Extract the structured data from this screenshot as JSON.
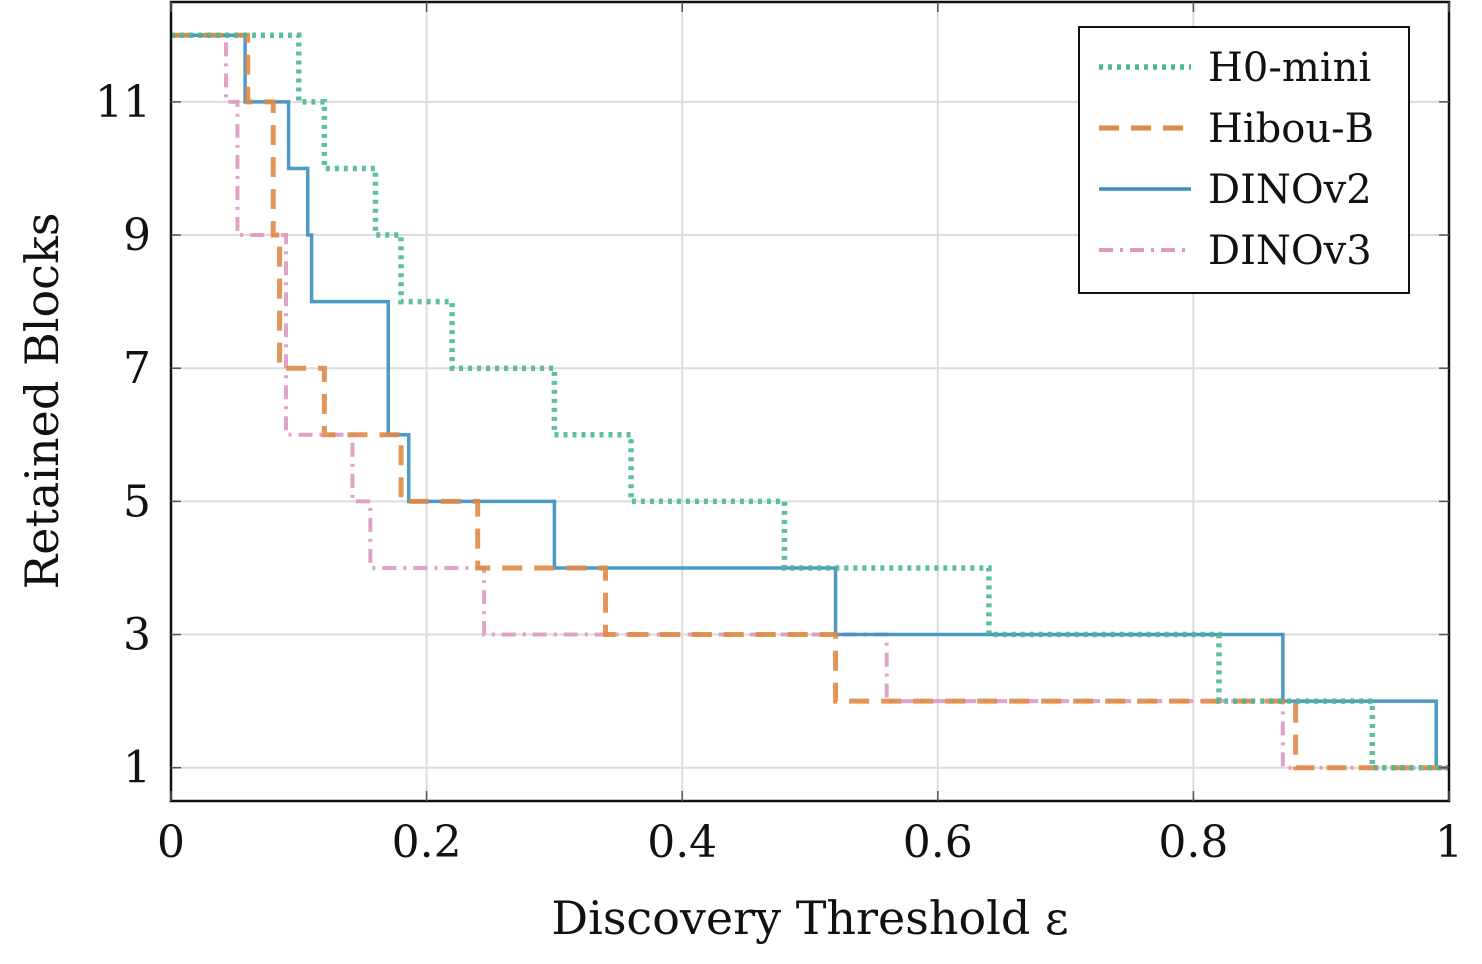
{
  "chart_data": {
    "type": "line",
    "step": true,
    "xlabel": "Discovery Threshold ε",
    "ylabel": "Retained Blocks",
    "xlim": [
      0,
      1
    ],
    "ylim": [
      0.5,
      12.5
    ],
    "xticks": [
      0,
      0.2,
      0.4,
      0.6,
      0.8,
      1
    ],
    "xtick_labels": [
      "0",
      "0.2",
      "0.4",
      "0.6",
      "0.8",
      "1"
    ],
    "yticks": [
      1,
      3,
      5,
      7,
      9,
      11
    ],
    "ytick_labels": [
      "1",
      "3",
      "5",
      "7",
      "9",
      "11"
    ],
    "grid": true,
    "legend_position": "top-right",
    "series": [
      {
        "name": "H0-mini",
        "color": "#4db892",
        "style": "dotted",
        "x": [
          0,
          0.1,
          0.12,
          0.16,
          0.18,
          0.22,
          0.3,
          0.36,
          0.48,
          0.64,
          0.82,
          0.94,
          1
        ],
        "y": [
          12,
          11,
          10,
          9,
          8,
          7,
          6,
          5,
          4,
          3,
          2,
          1,
          1
        ]
      },
      {
        "name": "Hibou-B",
        "color": "#e08a45",
        "style": "dashed",
        "x": [
          0,
          0.06,
          0.08,
          0.085,
          0.12,
          0.18,
          0.24,
          0.34,
          0.52,
          0.88,
          1
        ],
        "y": [
          12,
          11,
          9,
          7,
          6,
          5,
          4,
          3,
          2,
          1,
          1
        ]
      },
      {
        "name": "DINOv2",
        "color": "#3a8fc0",
        "style": "solid",
        "x": [
          0,
          0.058,
          0.092,
          0.107,
          0.11,
          0.17,
          0.186,
          0.3,
          0.52,
          0.87,
          0.99,
          1
        ],
        "y": [
          12,
          11,
          10,
          9,
          8,
          6,
          5,
          4,
          3,
          2,
          1,
          1
        ]
      },
      {
        "name": "DINOv3",
        "color": "#dd99c2",
        "style": "dashdot",
        "x": [
          0,
          0.043,
          0.052,
          0.09,
          0.142,
          0.156,
          0.245,
          0.56,
          0.87,
          1
        ],
        "y": [
          12,
          11,
          9,
          6,
          5,
          4,
          3,
          2,
          1,
          1
        ]
      }
    ]
  }
}
